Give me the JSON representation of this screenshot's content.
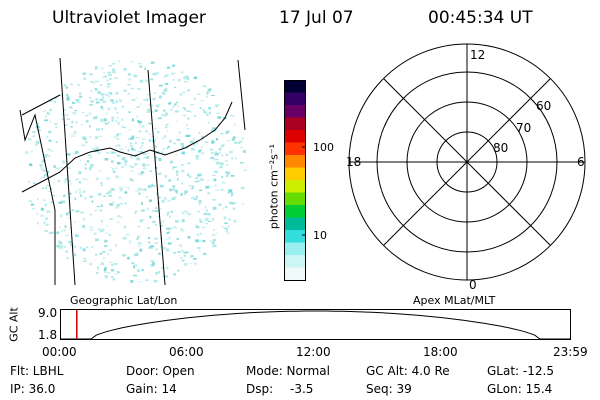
{
  "header": {
    "instrument": "Ultraviolet Imager",
    "date": "17 Jul 07",
    "time": "00:45:34 UT"
  },
  "colorbar": {
    "unit_label": "photon cm⁻²s⁻¹",
    "ticks": [
      "100",
      "10"
    ],
    "colors": [
      "#000033",
      "#330066",
      "#660066",
      "#aa0022",
      "#dd0000",
      "#ff3300",
      "#ff8800",
      "#ffcc00",
      "#ccee00",
      "#66dd00",
      "#00cc33",
      "#00bb99",
      "#33dddd",
      "#99eeee",
      "#ccf5f5",
      "#eef9f9"
    ]
  },
  "left_panel": {
    "label": "Geographic Lat/Lon",
    "dot_color": "#88dddd"
  },
  "polar": {
    "label": "Apex MLat/MLT",
    "mlt_labels": {
      "top": "12",
      "left": "18",
      "right": "6",
      "bottom": "0"
    },
    "lat_labels": [
      "60",
      "70",
      "80"
    ]
  },
  "timeline": {
    "axis_label": "GC Alt",
    "y_ticks": [
      "9.0",
      "1.8"
    ],
    "x_ticks": [
      "00:00",
      "06:00",
      "12:00",
      "18:00",
      "23:59"
    ],
    "marker_color": "#cc0000",
    "marker_time_fraction": 0.032
  },
  "status": {
    "flt": "Flt: LBHL",
    "ip": "IP: 36.0",
    "door": "Door: Open",
    "gain": "Gain: 14",
    "mode": "Mode: Normal",
    "dsp_label": "Dsp:",
    "dsp_value": "-3.5",
    "gc_alt": "GC Alt: 4.0 Re",
    "seq": "Seq: 39",
    "glat": "GLat: -12.5",
    "glon": "GLon: 15.4"
  }
}
